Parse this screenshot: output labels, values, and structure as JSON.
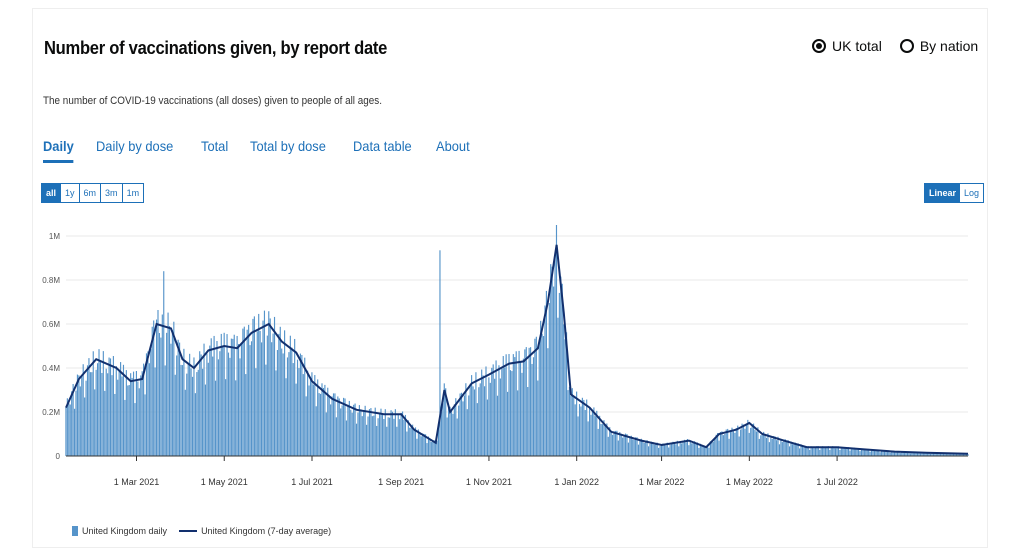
{
  "header": {
    "title": "Number of vaccinations given, by report date",
    "subtitle": "The number of COVID-19 vaccinations (all doses) given to people of all ages."
  },
  "radio": [
    {
      "label": "UK total",
      "checked": true
    },
    {
      "label": "By nation",
      "checked": false
    }
  ],
  "tabs": [
    "Daily",
    "Daily by dose",
    "Total",
    "Total by dose",
    "Data table",
    "About"
  ],
  "range_buttons": [
    "all",
    "1y",
    "6m",
    "3m",
    "1m"
  ],
  "scale_buttons": [
    "Linear",
    "Log"
  ],
  "colors": {
    "bar": "#5694ca",
    "line": "#12306e",
    "accent": "#1d70b8"
  },
  "chart_data": {
    "type": "bar",
    "title": "",
    "xlabel": "",
    "ylabel": "",
    "ylim": [
      0,
      1000000
    ],
    "yticks": [
      {
        "value": 0,
        "label": "0"
      },
      {
        "value": 200000,
        "label": "0.2M"
      },
      {
        "value": 400000,
        "label": "0.4M"
      },
      {
        "value": 600000,
        "label": "0.6M"
      },
      {
        "value": 800000,
        "label": "0.8M"
      },
      {
        "value": 1000000,
        "label": "1M"
      }
    ],
    "xlim": [
      "2021-01-11",
      "2022-09-30"
    ],
    "xticks": [
      {
        "date": "2021-03-01",
        "label": "1 Mar 2021"
      },
      {
        "date": "2021-05-01",
        "label": "1 May 2021"
      },
      {
        "date": "2021-07-01",
        "label": "1 Jul 2021"
      },
      {
        "date": "2021-09-01",
        "label": "1 Sep 2021"
      },
      {
        "date": "2021-11-01",
        "label": "1 Nov 2021"
      },
      {
        "date": "2022-01-01",
        "label": "1 Jan 2022"
      },
      {
        "date": "2022-03-01",
        "label": "1 Mar 2022"
      },
      {
        "date": "2022-05-01",
        "label": "1 May 2022"
      },
      {
        "date": "2022-07-01",
        "label": "1 Jul 2022"
      }
    ],
    "grid": true,
    "legend_position": "bottom-left",
    "series": [
      {
        "name": "United Kingdom daily",
        "type": "bar",
        "note": "daily bars follow the 7-day average with weekday/weekend variation",
        "peaks": [
          {
            "date": "2021-03-20",
            "value": 840000
          },
          {
            "date": "2021-09-28",
            "value": 935000
          },
          {
            "date": "2021-12-18",
            "value": 1050000
          }
        ]
      },
      {
        "name": "United Kingdom (7-day average)",
        "type": "line",
        "points": [
          {
            "date": "2021-01-11",
            "value": 220000
          },
          {
            "date": "2021-01-20",
            "value": 350000
          },
          {
            "date": "2021-02-01",
            "value": 440000
          },
          {
            "date": "2021-02-15",
            "value": 400000
          },
          {
            "date": "2021-02-25",
            "value": 340000
          },
          {
            "date": "2021-03-05",
            "value": 350000
          },
          {
            "date": "2021-03-15",
            "value": 600000
          },
          {
            "date": "2021-03-25",
            "value": 580000
          },
          {
            "date": "2021-04-02",
            "value": 440000
          },
          {
            "date": "2021-04-10",
            "value": 400000
          },
          {
            "date": "2021-04-20",
            "value": 480000
          },
          {
            "date": "2021-05-01",
            "value": 500000
          },
          {
            "date": "2021-05-10",
            "value": 490000
          },
          {
            "date": "2021-05-20",
            "value": 560000
          },
          {
            "date": "2021-06-01",
            "value": 600000
          },
          {
            "date": "2021-06-10",
            "value": 520000
          },
          {
            "date": "2021-06-20",
            "value": 470000
          },
          {
            "date": "2021-07-01",
            "value": 340000
          },
          {
            "date": "2021-07-15",
            "value": 260000
          },
          {
            "date": "2021-08-01",
            "value": 210000
          },
          {
            "date": "2021-08-20",
            "value": 190000
          },
          {
            "date": "2021-09-01",
            "value": 190000
          },
          {
            "date": "2021-09-10",
            "value": 120000
          },
          {
            "date": "2021-09-25",
            "value": 60000
          },
          {
            "date": "2021-10-01",
            "value": 300000
          },
          {
            "date": "2021-10-05",
            "value": 200000
          },
          {
            "date": "2021-10-20",
            "value": 330000
          },
          {
            "date": "2021-11-01",
            "value": 370000
          },
          {
            "date": "2021-11-15",
            "value": 420000
          },
          {
            "date": "2021-11-25",
            "value": 430000
          },
          {
            "date": "2021-12-05",
            "value": 490000
          },
          {
            "date": "2021-12-12",
            "value": 700000
          },
          {
            "date": "2021-12-18",
            "value": 960000
          },
          {
            "date": "2021-12-23",
            "value": 650000
          },
          {
            "date": "2021-12-28",
            "value": 280000
          },
          {
            "date": "2022-01-10",
            "value": 220000
          },
          {
            "date": "2022-01-25",
            "value": 110000
          },
          {
            "date": "2022-02-15",
            "value": 70000
          },
          {
            "date": "2022-03-01",
            "value": 50000
          },
          {
            "date": "2022-03-20",
            "value": 70000
          },
          {
            "date": "2022-04-01",
            "value": 40000
          },
          {
            "date": "2022-04-10",
            "value": 100000
          },
          {
            "date": "2022-04-22",
            "value": 120000
          },
          {
            "date": "2022-05-01",
            "value": 150000
          },
          {
            "date": "2022-05-10",
            "value": 100000
          },
          {
            "date": "2022-05-25",
            "value": 70000
          },
          {
            "date": "2022-06-10",
            "value": 40000
          },
          {
            "date": "2022-07-01",
            "value": 40000
          },
          {
            "date": "2022-07-20",
            "value": 30000
          },
          {
            "date": "2022-08-10",
            "value": 20000
          },
          {
            "date": "2022-09-01",
            "value": 15000
          },
          {
            "date": "2022-09-30",
            "value": 10000
          }
        ]
      }
    ]
  }
}
